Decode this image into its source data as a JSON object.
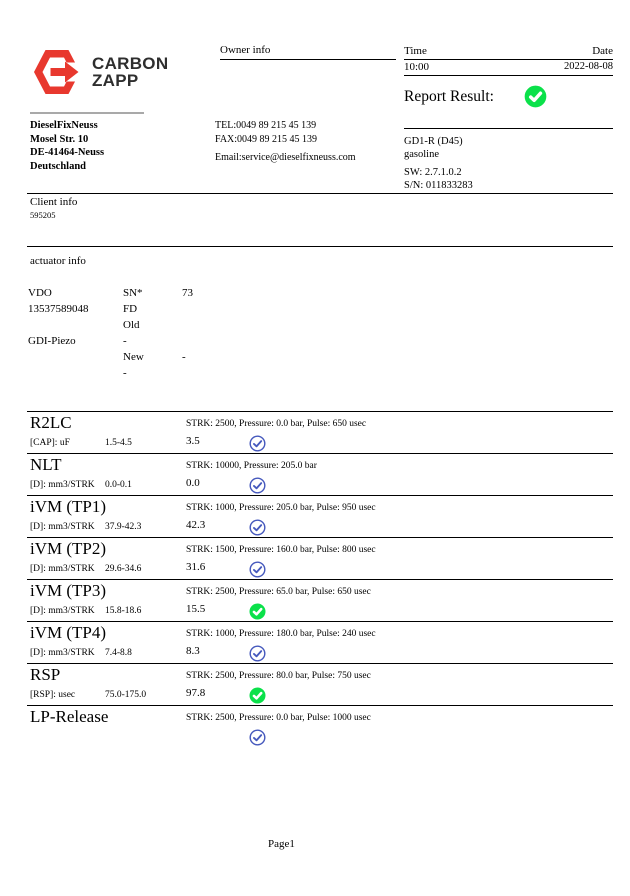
{
  "brand": {
    "name_line1": "CARBON",
    "name_line2": "ZAPP"
  },
  "header": {
    "owner_info_label": "Owner info",
    "time_label": "Time",
    "date_label": "Date",
    "time_value": "10:00",
    "date_value": "2022-08-08",
    "report_result_label": "Report Result:",
    "report_result_status": "green"
  },
  "workshop": {
    "name": "DieselFixNeuss",
    "street": "Mosel Str. 10",
    "city": "DE-41464-Neuss",
    "country": "Deutschland",
    "tel": "TEL:0049 89 215 45 139",
    "fax": "FAX:0049 89 215 45 139",
    "email": "Email:service@dieselfixneuss.com"
  },
  "machine": {
    "model": "GD1-R (D45)",
    "fuel": "gasoline",
    "sw": "SW: 2.7.1.0.2",
    "sn": "S/N: 011833283"
  },
  "client": {
    "label": "Client info",
    "value": "595205"
  },
  "actuator": {
    "label": "actuator info",
    "rows": [
      {
        "c1": "VDO",
        "c2": "SN*",
        "c3": "73"
      },
      {
        "c1": "13537589048",
        "c2": "FD",
        "c3": ""
      },
      {
        "c1": "",
        "c2": "Old",
        "c3": ""
      },
      {
        "c1": "GDI-Piezo",
        "c2": "-",
        "c3": ""
      },
      {
        "c1": "",
        "c2": "New",
        "c3": "-"
      },
      {
        "c1": "",
        "c2": "-",
        "c3": ""
      }
    ]
  },
  "tests": {
    "rows": [
      {
        "name": "R2LC",
        "condition": "STRK: 2500, Pressure: 0.0 bar, Pulse: 650 usec",
        "unit": "[CAP]: uF",
        "range": "1.5-4.5",
        "value": "3.5",
        "status": "blue"
      },
      {
        "name": "NLT",
        "condition": "STRK: 10000, Pressure: 205.0 bar",
        "unit": "[D]: mm3/STRK",
        "range": "0.0-0.1",
        "value": "0.0",
        "status": "blue"
      },
      {
        "name": "iVM (TP1)",
        "condition": "STRK: 1000, Pressure: 205.0 bar, Pulse: 950 usec",
        "unit": "[D]: mm3/STRK",
        "range": "37.9-42.3",
        "value": "42.3",
        "status": "blue"
      },
      {
        "name": "iVM (TP2)",
        "condition": "STRK: 1500, Pressure: 160.0 bar, Pulse: 800 usec",
        "unit": "[D]: mm3/STRK",
        "range": "29.6-34.6",
        "value": "31.6",
        "status": "blue"
      },
      {
        "name": "iVM (TP3)",
        "condition": "STRK: 2500, Pressure: 65.0 bar, Pulse: 650 usec",
        "unit": "[D]: mm3/STRK",
        "range": "15.8-18.6",
        "value": "15.5",
        "status": "green"
      },
      {
        "name": "iVM (TP4)",
        "condition": "STRK: 1000, Pressure: 180.0 bar, Pulse: 240 usec",
        "unit": "[D]: mm3/STRK",
        "range": "7.4-8.8",
        "value": "8.3",
        "status": "blue"
      },
      {
        "name": "RSP",
        "condition": "STRK: 2500, Pressure: 80.0 bar, Pulse: 750 usec",
        "unit": "[RSP]: usec",
        "range": "75.0-175.0",
        "value": "97.8",
        "status": "green"
      },
      {
        "name": "LP-Release",
        "condition": "STRK: 2500, Pressure: 0.0 bar, Pulse: 1000 usec",
        "status": "blue"
      }
    ]
  },
  "colors": {
    "logo_red": "#e8382e",
    "pass_blue": "#4659bd",
    "pass_green": "#0be14a"
  },
  "footer": {
    "page_label": "Page1"
  }
}
